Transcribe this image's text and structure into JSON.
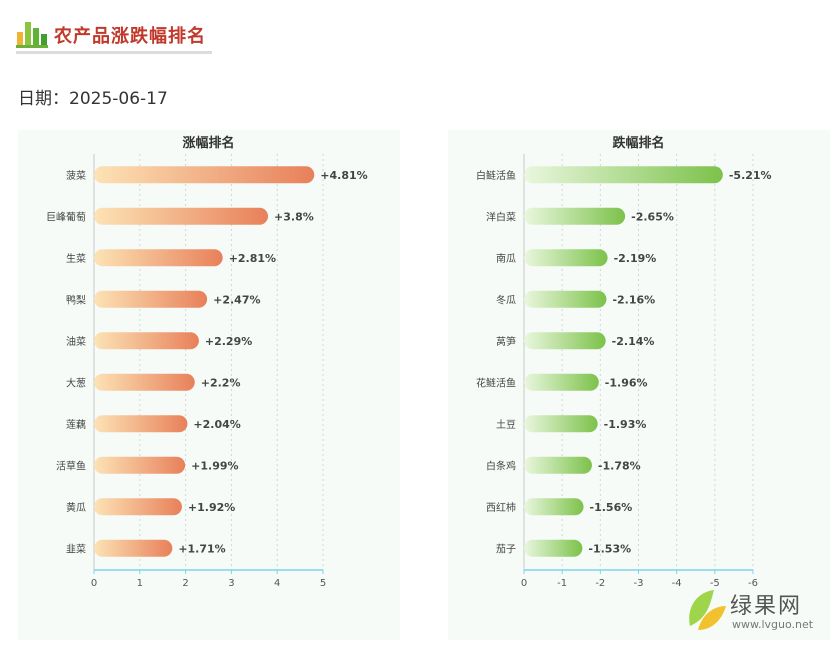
{
  "header": {
    "title": "农产品涨跌幅排名"
  },
  "date_label": "日期：2025-06-17",
  "colors": {
    "rise_start": "#fce3b5",
    "rise_end": "#e8805a",
    "fall_start": "#eaf7df",
    "fall_end": "#7cc24a",
    "axis": "#7fd3ef",
    "grid": "#cfd8d4",
    "title_red": "#c0392b"
  },
  "watermark": {
    "cn": "绿果网",
    "en": "www.lvguo.net"
  },
  "chart_data": [
    {
      "type": "bar",
      "orientation": "horizontal",
      "title": "涨幅排名",
      "categories": [
        "菠菜",
        "巨峰葡萄",
        "生菜",
        "鸭梨",
        "油菜",
        "大葱",
        "莲藕",
        "活草鱼",
        "黄瓜",
        "韭菜"
      ],
      "values": [
        4.81,
        3.8,
        2.81,
        2.47,
        2.29,
        2.2,
        2.04,
        1.99,
        1.92,
        1.71
      ],
      "labels": [
        "+4.81%",
        "+3.8%",
        "+2.81%",
        "+2.47%",
        "+2.29%",
        "+2.2%",
        "+2.04%",
        "+1.99%",
        "+1.92%",
        "+1.71%"
      ],
      "xlim": [
        0,
        5
      ],
      "xticks": [
        "0",
        "1",
        "2",
        "3",
        "4",
        "5"
      ],
      "grid": true
    },
    {
      "type": "bar",
      "orientation": "horizontal",
      "title": "跌幅排名",
      "categories": [
        "白鲢活鱼",
        "洋白菜",
        "南瓜",
        "冬瓜",
        "莴笋",
        "花鲢活鱼",
        "土豆",
        "白条鸡",
        "西红柿",
        "茄子"
      ],
      "values": [
        -5.21,
        -2.65,
        -2.19,
        -2.16,
        -2.14,
        -1.96,
        -1.93,
        -1.78,
        -1.56,
        -1.53
      ],
      "labels": [
        "-5.21%",
        "-2.65%",
        "-2.19%",
        "-2.16%",
        "-2.14%",
        "-1.96%",
        "-1.93%",
        "-1.78%",
        "-1.56%",
        "-1.53%"
      ],
      "xlim": [
        0,
        -6
      ],
      "xticks": [
        "0",
        "-1",
        "-2",
        "-3",
        "-4",
        "-5",
        "-6"
      ],
      "grid": true
    }
  ]
}
